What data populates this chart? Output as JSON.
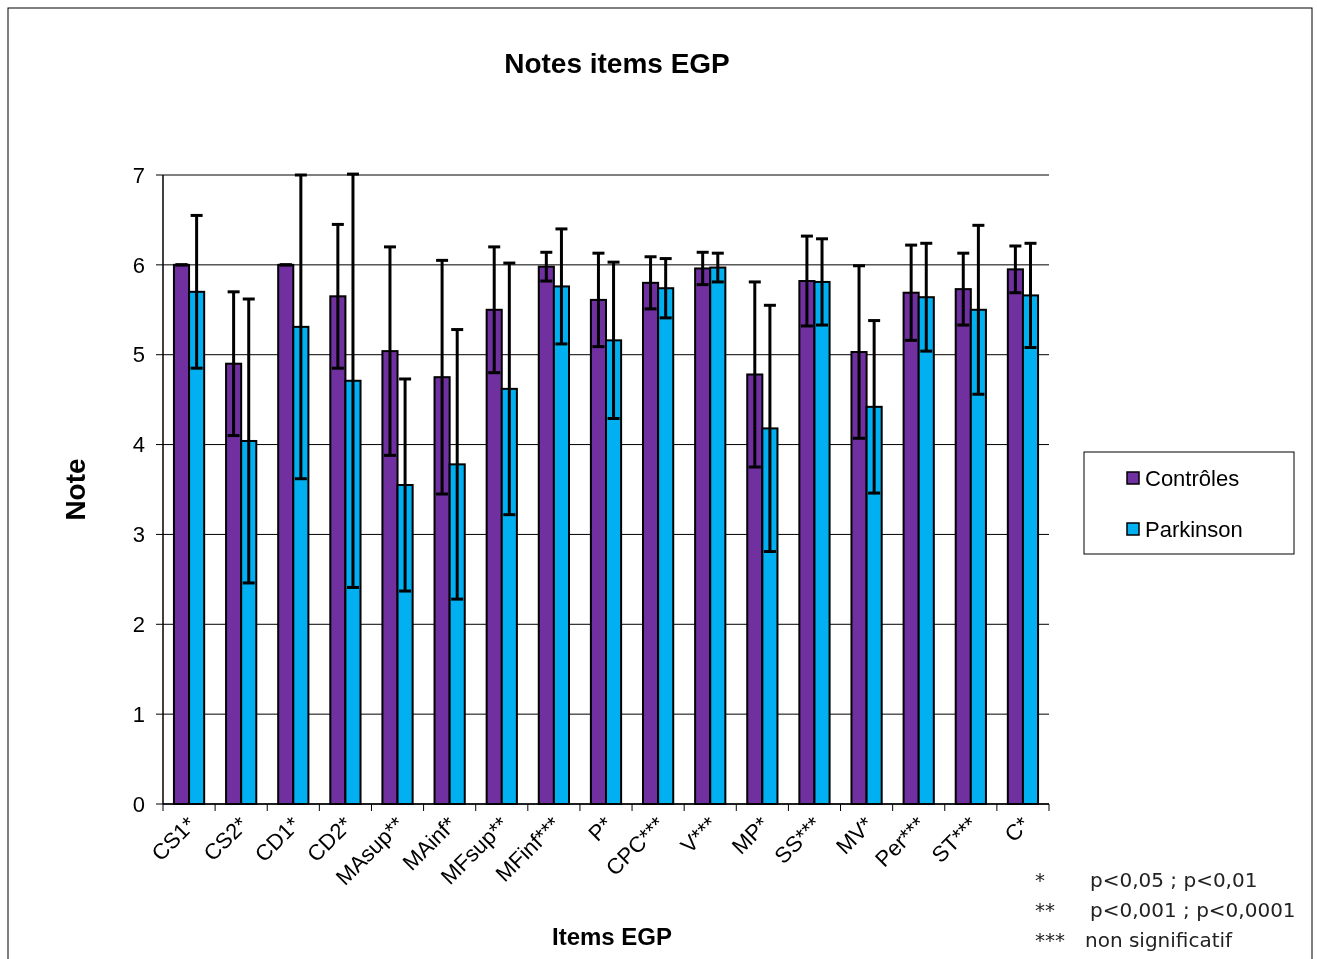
{
  "chart_data": {
    "type": "bar",
    "title": "Notes items EGP",
    "xlabel": "Items EGP",
    "ylabel": "Note",
    "categories": [
      "CS1*",
      "CS2*",
      "CD1*",
      "CD2*",
      "MAsup**",
      "MAinf*",
      "MFsup**",
      "MFinf***",
      "P*",
      "CPC***",
      "V***",
      "MP*",
      "SS***",
      "MV*",
      "Per***",
      "ST***",
      "C*"
    ],
    "series": [
      {
        "name": "Contrôles",
        "color": "#7030a0",
        "values": [
          6.0,
          4.9,
          6.0,
          5.65,
          5.04,
          4.75,
          5.5,
          5.98,
          5.61,
          5.8,
          5.96,
          4.78,
          5.82,
          5.03,
          5.69,
          5.73,
          5.95
        ],
        "errors": [
          0,
          0.8,
          0,
          0.8,
          1.16,
          1.3,
          0.7,
          0.16,
          0.52,
          0.29,
          0.18,
          1.03,
          0.5,
          0.96,
          0.53,
          0.4,
          0.26
        ]
      },
      {
        "name": "Parkinson",
        "color": "#00b0f0",
        "values": [
          5.7,
          4.04,
          5.31,
          4.71,
          3.55,
          3.78,
          4.62,
          5.76,
          5.16,
          5.74,
          5.97,
          4.18,
          5.81,
          4.42,
          5.64,
          5.5,
          5.66
        ],
        "errors": [
          0.85,
          1.58,
          1.69,
          2.3,
          1.18,
          1.5,
          1.4,
          0.64,
          0.87,
          0.33,
          0.16,
          1.37,
          0.48,
          0.96,
          0.6,
          0.94,
          0.58
        ]
      }
    ],
    "ylim": [
      0,
      7
    ],
    "yticks": [
      0,
      1,
      2,
      3,
      4,
      5,
      6,
      7
    ],
    "grid": "y",
    "legend": "right",
    "annotations": [
      "* p<0,05 ; p<0,01",
      "** p<0,001 ; p<0,0001",
      "*** non significatif"
    ]
  }
}
